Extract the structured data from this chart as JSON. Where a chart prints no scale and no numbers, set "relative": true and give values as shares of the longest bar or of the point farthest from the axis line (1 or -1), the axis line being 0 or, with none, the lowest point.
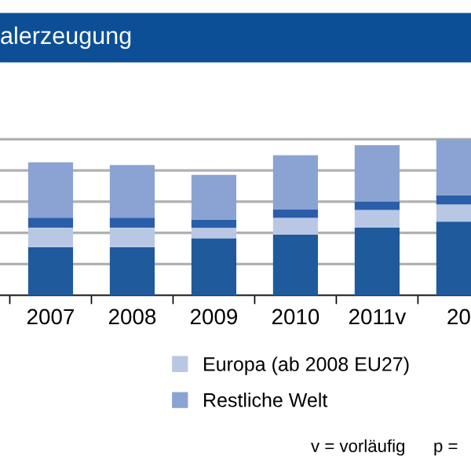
{
  "chart_data": {
    "type": "bar",
    "title": "alerzeugung",
    "stacked": true,
    "relative": true,
    "grid": "y",
    "legend": "bottom",
    "categories": [
      "2007",
      "2008",
      "2009",
      "2010",
      "2011v",
      "20"
    ],
    "series": [
      {
        "color": "#1f5a9c",
        "values": [
          0.309,
          0.309,
          0.365,
          0.39,
          0.433,
          0.472
        ]
      },
      {
        "name": "Europa (ab 2008 EU27)",
        "color": "#b8c8e4",
        "values": [
          0.124,
          0.124,
          0.067,
          0.106,
          0.113,
          0.11
        ]
      },
      {
        "color": "#2a5ea8",
        "values": [
          0.064,
          0.064,
          0.053,
          0.053,
          0.053,
          0.06
        ]
      },
      {
        "name": "Restliche Welt",
        "color": "#8aa3d2",
        "values": [
          0.355,
          0.337,
          0.287,
          0.348,
          0.362,
          0.358
        ]
      }
    ],
    "annotations": [
      "v = vorläufig",
      "p ="
    ]
  }
}
